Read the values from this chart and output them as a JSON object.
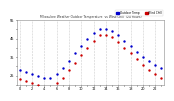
{
  "title": "Milwaukee Weather Outdoor Temperature",
  "subtitle": "vs Wind Chill",
  "subtitle2": "(24 Hours)",
  "outdoor_temp_color": "#0000cc",
  "wind_chill_color": "#cc0000",
  "background_color": "#ffffff",
  "plot_bg_color": "#ffffff",
  "grid_color": "#cccccc",
  "ylim": [
    20,
    55
  ],
  "hours": [
    0,
    1,
    2,
    3,
    4,
    5,
    6,
    7,
    8,
    9,
    10,
    11,
    12,
    13,
    14,
    15,
    16,
    17,
    18,
    19,
    20,
    21,
    22,
    23
  ],
  "outdoor_temp": [
    28,
    27,
    26,
    25,
    24,
    24,
    26,
    29,
    33,
    37,
    41,
    45,
    48,
    50,
    50,
    49,
    47,
    44,
    41,
    38,
    35,
    33,
    31,
    29
  ],
  "wind_chill": [
    23,
    22,
    21,
    20,
    19,
    19,
    21,
    24,
    28,
    32,
    36,
    40,
    44,
    47,
    47,
    46,
    43,
    40,
    37,
    34,
    31,
    28,
    26,
    24
  ],
  "xtick_values": [
    0,
    1,
    2,
    3,
    4,
    5,
    6,
    7,
    8,
    9,
    10,
    11,
    12,
    13,
    14,
    15,
    16,
    17,
    18,
    19,
    20,
    21,
    22,
    23
  ],
  "xtick_labels": [
    "0",
    "",
    "2",
    "",
    "4",
    "",
    "6",
    "",
    "8",
    "",
    "10",
    "",
    "12",
    "",
    "14",
    "",
    "16",
    "",
    "18",
    "",
    "20",
    "",
    "22",
    ""
  ],
  "ytick_values": [
    20,
    25,
    30,
    35,
    40,
    45,
    50,
    55
  ],
  "ytick_labels": [
    "",
    "25",
    "",
    "35",
    "",
    "45",
    "",
    "55"
  ],
  "marker_size": 3,
  "legend_label_temp": "Outdoor Temp",
  "legend_label_wc": "Wind Chill"
}
